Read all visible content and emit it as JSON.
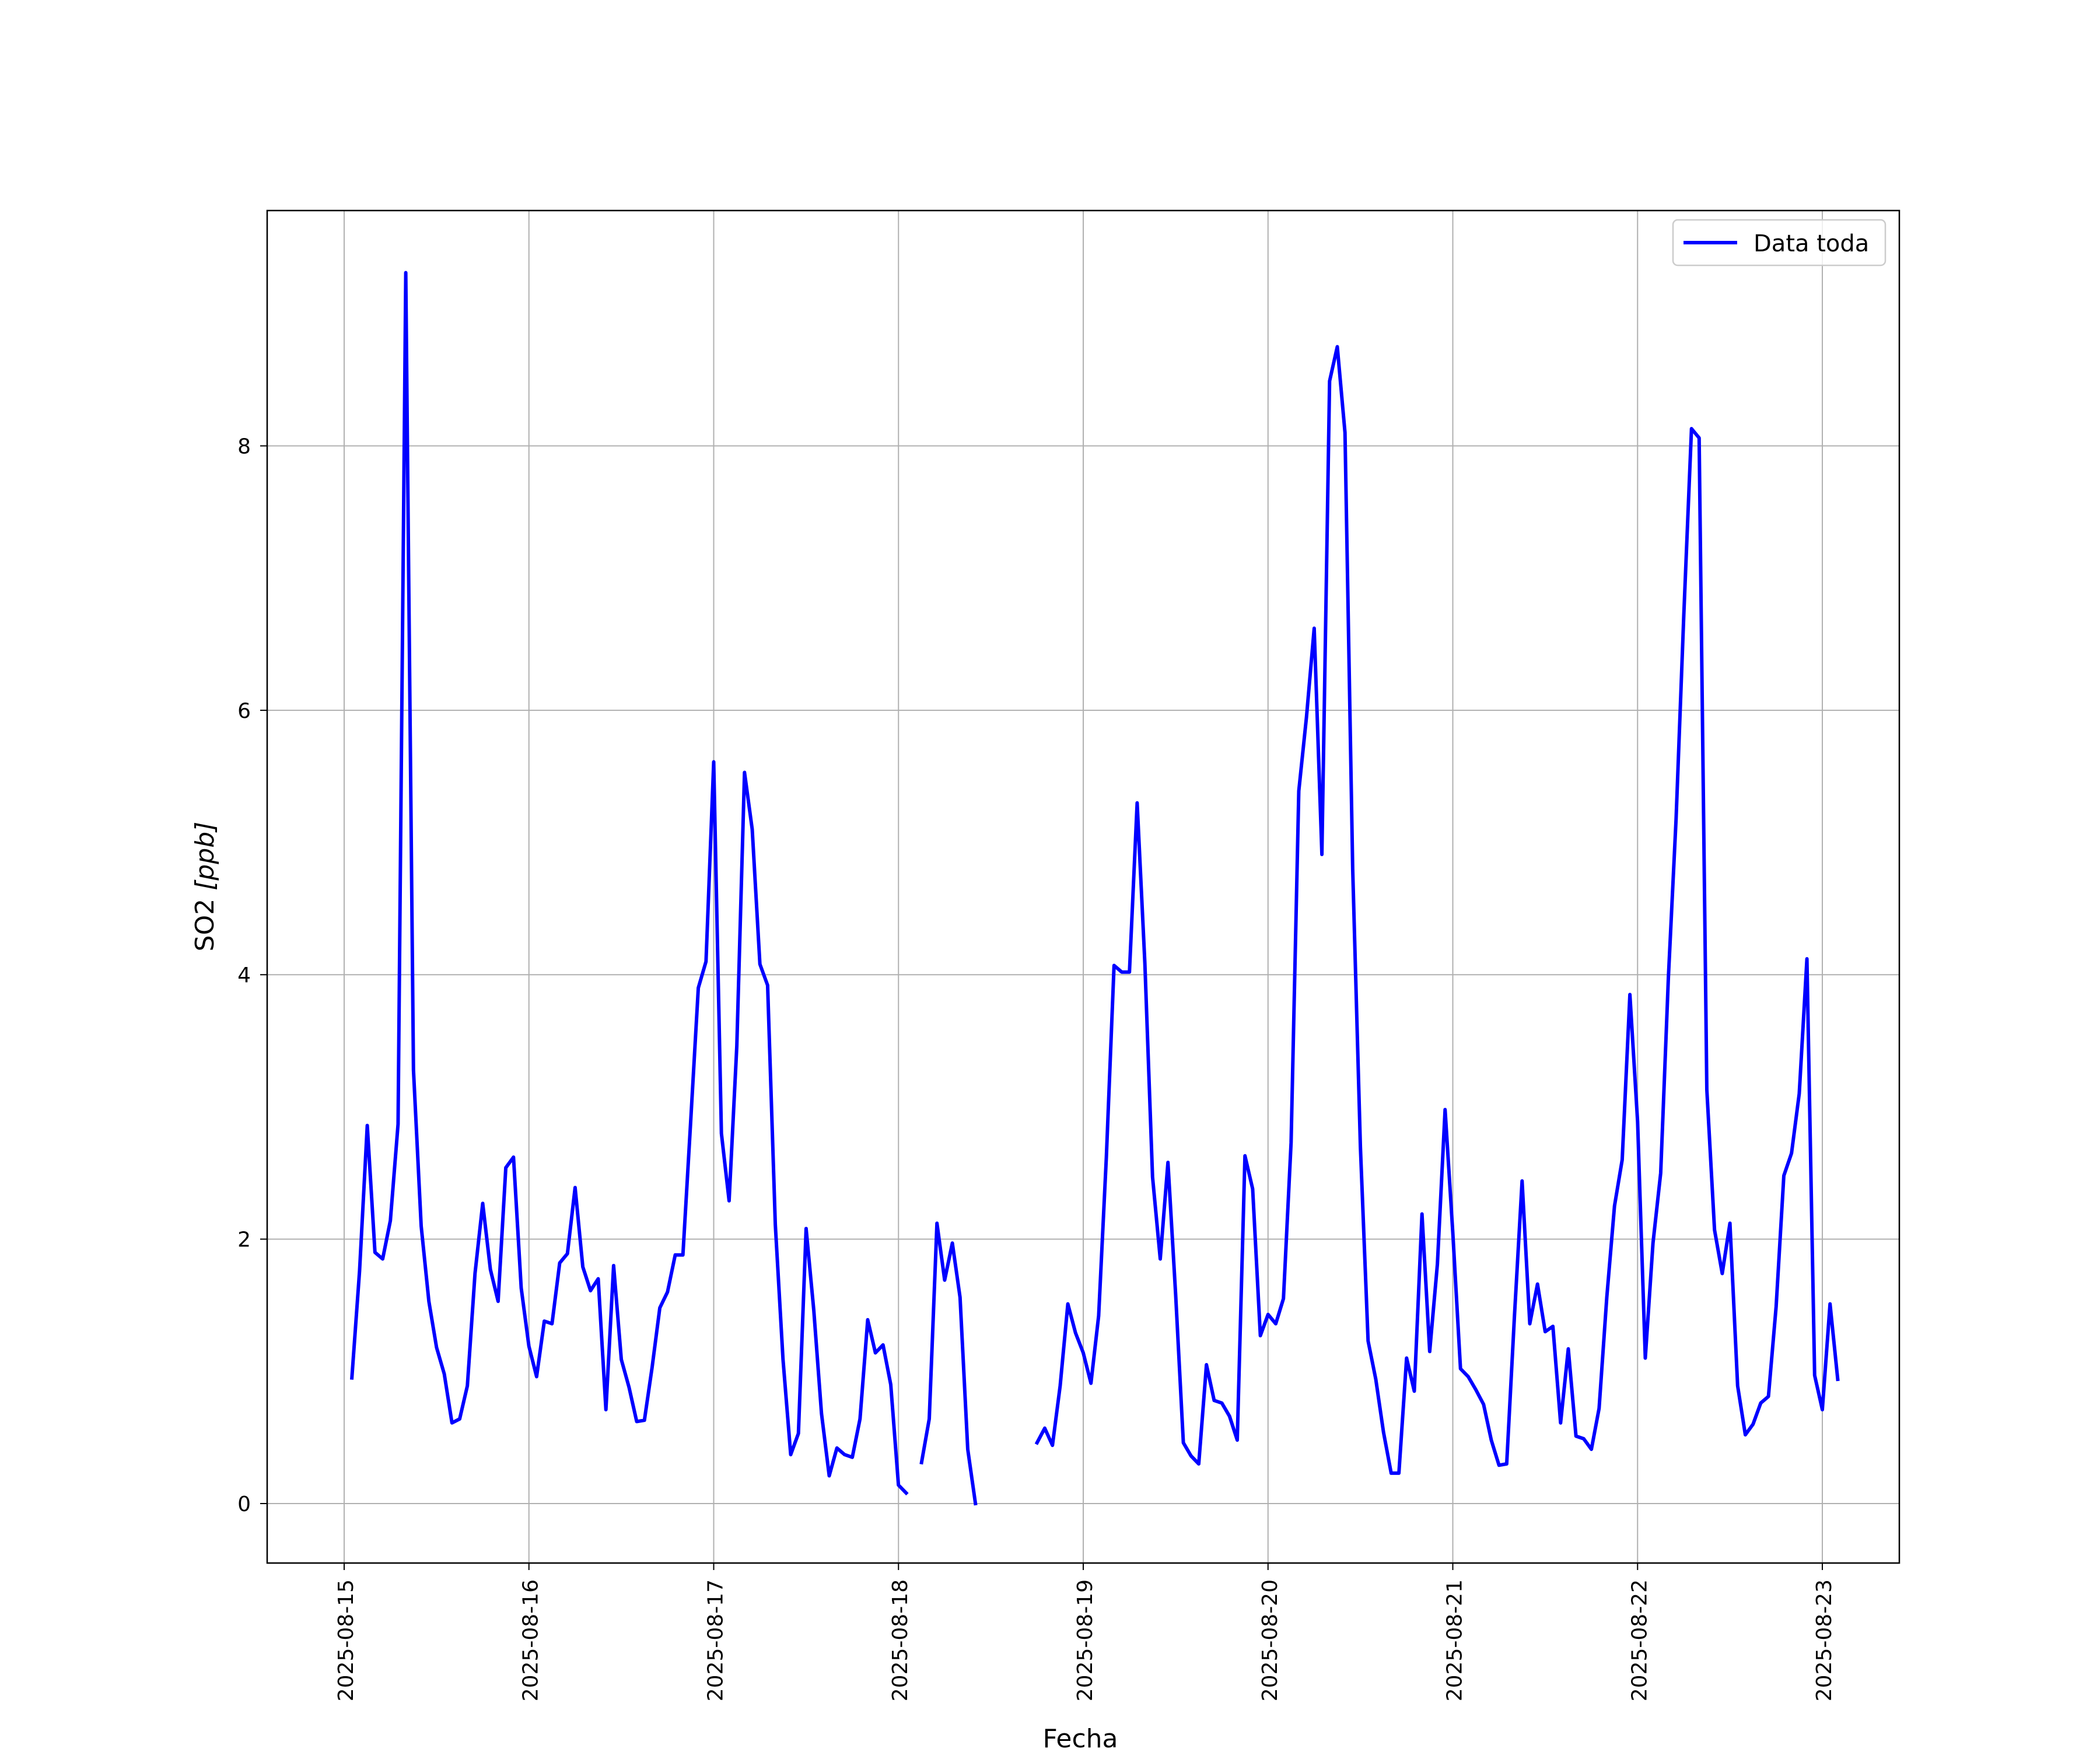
{
  "chart_data": {
    "type": "line",
    "title": "",
    "xlabel": "Fecha",
    "ylabel_main": "SO2 ",
    "ylabel_unit": "[ppb]",
    "ylabel": "SO2 [ppb]",
    "x_tick_labels": [
      "2025-08-15",
      "2025-08-16",
      "2025-08-17",
      "2025-08-18",
      "2025-08-19",
      "2025-08-20",
      "2025-08-21",
      "2025-08-22",
      "2025-08-23"
    ],
    "y_tick_labels": [
      "0",
      "2",
      "4",
      "6",
      "8"
    ],
    "xlim": [
      "2025-08-14 14:00",
      "2025-08-23 10:00"
    ],
    "ylim": [
      -0.45,
      9.78
    ],
    "grid": true,
    "legend_position": "top-right",
    "series": [
      {
        "name": "Data toda",
        "color": "#0000ff",
        "x_start": "2025-08-15 01:00",
        "step_hours": 1,
        "values": [
          0.95,
          1.76,
          2.86,
          1.9,
          1.85,
          2.14,
          2.87,
          9.31,
          3.28,
          2.1,
          1.53,
          1.18,
          0.98,
          0.61,
          0.64,
          0.89,
          1.74,
          2.27,
          1.77,
          1.53,
          2.54,
          2.62,
          1.63,
          1.19,
          0.96,
          1.38,
          1.36,
          1.82,
          1.89,
          2.39,
          1.79,
          1.61,
          1.7,
          0.71,
          1.8,
          1.09,
          0.88,
          0.62,
          0.63,
          1.03,
          1.48,
          1.6,
          1.88,
          1.88,
          2.88,
          3.9,
          4.1,
          5.61,
          2.8,
          2.29,
          3.46,
          5.53,
          5.1,
          4.08,
          3.92,
          2.11,
          1.09,
          0.37,
          0.53,
          2.08,
          1.46,
          0.68,
          0.21,
          0.42,
          0.37,
          0.35,
          0.64,
          1.39,
          1.14,
          1.2,
          0.9,
          0.14,
          0.08,
          null,
          0.31,
          0.64,
          2.12,
          1.69,
          1.97,
          1.56,
          0.41,
          0.0,
          null,
          null,
          null,
          null,
          null,
          null,
          null,
          0.46,
          0.57,
          0.44,
          0.89,
          1.51,
          1.29,
          1.14,
          0.91,
          1.42,
          2.62,
          4.07,
          4.02,
          4.02,
          5.3,
          4.09,
          2.47,
          1.85,
          2.58,
          1.58,
          0.46,
          0.36,
          0.3,
          1.05,
          0.78,
          0.76,
          0.66,
          0.48,
          2.63,
          2.38,
          1.27,
          1.43,
          1.36,
          1.55,
          2.73,
          5.39,
          5.95,
          6.62,
          4.91,
          8.49,
          8.75,
          8.1,
          4.8,
          2.7,
          1.23,
          0.94,
          0.54,
          0.23,
          0.23,
          1.1,
          0.85,
          2.19,
          1.15,
          1.81,
          2.98,
          2.05,
          1.02,
          0.96,
          0.86,
          0.75,
          0.48,
          0.29,
          0.3,
          1.41,
          2.44,
          1.36,
          1.66,
          1.3,
          1.34,
          0.61,
          1.17,
          0.51,
          0.49,
          0.41,
          0.72,
          1.56,
          2.25,
          2.6,
          3.85,
          2.89,
          1.1,
          1.97,
          2.5,
          3.98,
          5.18,
          6.72,
          8.13,
          8.06,
          3.13,
          2.07,
          1.74,
          2.12,
          0.89,
          0.52,
          0.6,
          0.76,
          0.81,
          1.49,
          2.48,
          2.65,
          3.1,
          4.12,
          0.97,
          0.71,
          1.51,
          0.94
        ]
      }
    ]
  }
}
